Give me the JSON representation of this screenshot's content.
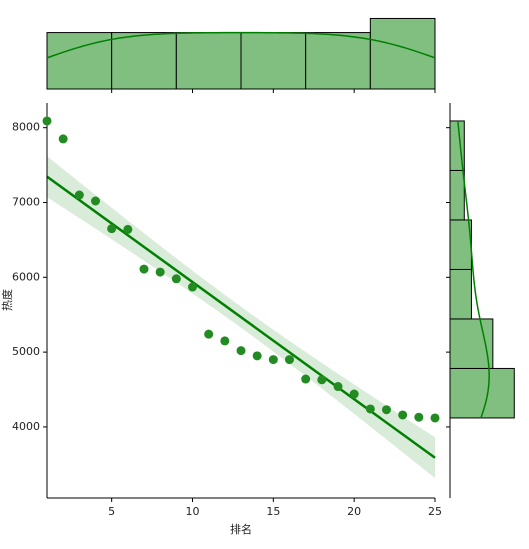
{
  "chart_data": {
    "type": "scatter",
    "xlabel": "排名",
    "ylabel": "热度",
    "x": [
      1,
      2,
      3,
      4,
      5,
      6,
      7,
      8,
      9,
      10,
      11,
      12,
      13,
      14,
      15,
      16,
      17,
      18,
      19,
      20,
      21,
      22,
      23,
      24,
      25
    ],
    "values": [
      8090,
      7850,
      7100,
      7020,
      6650,
      6640,
      6110,
      6070,
      5980,
      5870,
      5240,
      5150,
      5020,
      4950,
      4900,
      4900,
      4640,
      4630,
      4540,
      4440,
      4240,
      4230,
      4160,
      4130,
      4120
    ],
    "color": "#228b22",
    "line_color": "#008000",
    "band_color": "#cfe6cf",
    "hist_color": "#80bf80",
    "regression": true,
    "marginal_bins": 6,
    "xlim": [
      1,
      25
    ],
    "ylim": [
      3050,
      8330
    ],
    "xticks": [
      5,
      10,
      15,
      20,
      25
    ],
    "yticks": [
      4000,
      5000,
      6000,
      7000,
      8000
    ]
  }
}
